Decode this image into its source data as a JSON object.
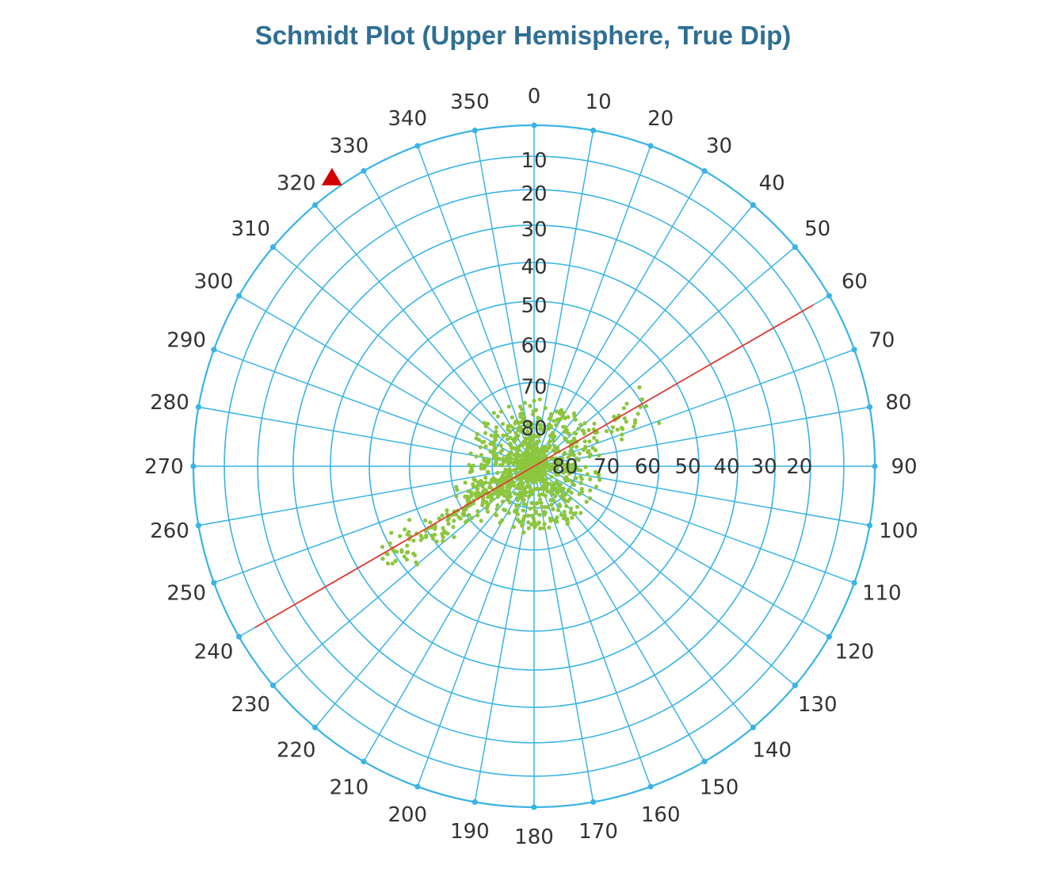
{
  "colors": {
    "grid": "#3ab4e6",
    "points": "#8cc63f",
    "trend_line": "#e03c31",
    "marker": "#d40000",
    "title": "#2f6f93",
    "labels": "#333333"
  },
  "chart_data": {
    "type": "scatter",
    "projection": "schmidt-equal-area-polar",
    "title": "Schmidt Plot (Upper Hemisphere, True Dip)",
    "azimuth_ticks": [
      "0",
      "10",
      "20",
      "30",
      "40",
      "50",
      "60",
      "70",
      "80",
      "90",
      "100",
      "110",
      "120",
      "130",
      "140",
      "150",
      "160",
      "170",
      "180",
      "190",
      "200",
      "210",
      "220",
      "230",
      "240",
      "250",
      "260",
      "270",
      "280",
      "290",
      "300",
      "310",
      "320",
      "330",
      "340",
      "350"
    ],
    "dip_ticks_north": [
      "10",
      "20",
      "30",
      "40",
      "50",
      "60",
      "70",
      "80"
    ],
    "dip_ticks_east": [
      "20",
      "30",
      "40",
      "50",
      "60",
      "70",
      "80"
    ],
    "dip_range": [
      0,
      90
    ],
    "trend_line": {
      "azimuth_start": 60,
      "azimuth_end": 240,
      "dip": 0
    },
    "marker": {
      "shape": "triangle",
      "azimuth": 325,
      "dip": 0
    },
    "scatter_clusters": [
      {
        "azimuth_mean": 60,
        "dip_mean": 80,
        "spread_azimuth": 360,
        "dip_range": [
          74,
          90
        ],
        "count": 1100
      },
      {
        "azimuth_mean": 242,
        "dip_mean": 78,
        "spread_azimuth": 20,
        "dip_range": [
          70,
          84
        ],
        "count": 130
      },
      {
        "azimuth_mean": 238,
        "dip_mean": 58,
        "spread_azimuth": 12,
        "dip_range": [
          46,
          70
        ],
        "count": 80
      },
      {
        "azimuth_mean": 62,
        "dip_mean": 70,
        "spread_azimuth": 22,
        "dip_range": [
          58,
          80
        ],
        "count": 40
      }
    ]
  }
}
